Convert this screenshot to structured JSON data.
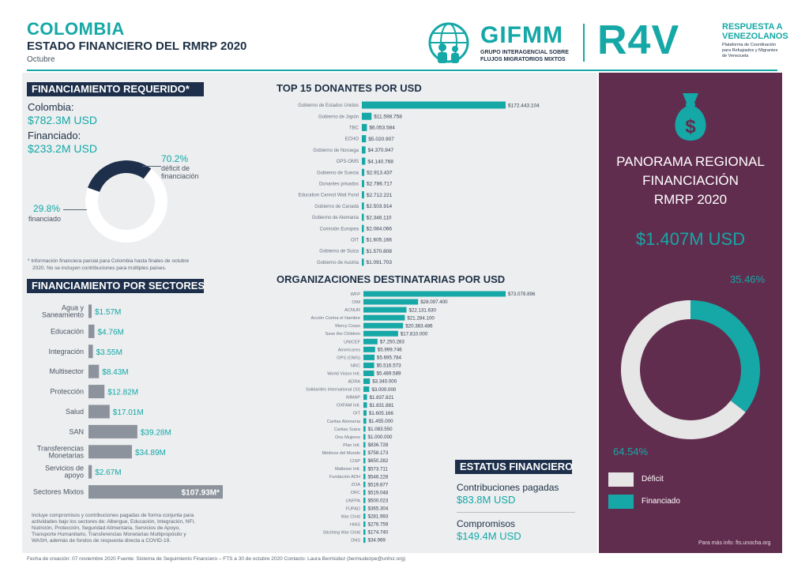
{
  "header": {
    "title": "COLOMBIA",
    "subtitle": "ESTADO FINANCIERO DEL RMRP 2020",
    "month": "Octubre"
  },
  "logos": {
    "gifmm": {
      "name": "GIFMM",
      "line1": "GRUPO INTERAGENCIAL SOBRE",
      "line2": "FLUJOS MIGRATORIOS MIXTOS"
    },
    "r4v": {
      "name": "R4V",
      "line1": "RESPUESTA A",
      "line2": "VENEZOLANOS",
      "line3": "Plataforma de Coordinación",
      "line4": "para Refugiados y Migrantes",
      "line5": "de Venezuela"
    }
  },
  "financiamiento_requerido": {
    "heading": "FINANCIAMIENTO REQUERIDO*",
    "country_label": "Colombia:",
    "country_value": "$782.3M USD",
    "funded_label": "Financiado:",
    "funded_value": "$233.2M USD",
    "deficit_pct": "70.2%",
    "deficit_label_1": "déficit de",
    "deficit_label_2": "financiación",
    "funded_pct": "29.8%",
    "funded_pct_label": "financiado",
    "note_1": "* Información financiera parcial para Colombia hasta finales de octubre",
    "note_2": "2020. No se incluyen contribuciones para múltiples países."
  },
  "sectores": {
    "heading": "FINANCIAMIENTO POR SECTORES",
    "note_1": "Incluye compromisos y contribuciones pagadas de forma conjunta para",
    "note_2": "actividades bajo los sectores de: Albergue, Educación, Integración, NFI,",
    "note_3": "Nutrición, Protección, Seguridad Alimentaria, Servicios de Apoyo,",
    "note_4": "Transporte Humanitario, Transferencias Monetarias Multipropósito y",
    "note_5": "WASH, además de fondos de respuesta directa a COVID-19."
  },
  "top_donantes": {
    "heading": "TOP 15 DONANTES POR USD"
  },
  "organizaciones": {
    "heading": "ORGANIZACIONES DESTINATARIAS POR USD"
  },
  "estatus": {
    "heading": "ESTATUS FINANCIERO",
    "contrib_label": "Contribuciones pagadas",
    "contrib_value": "$83.8M USD",
    "comp_label": "Compromisos",
    "comp_value": "$149.4M USD"
  },
  "panorama": {
    "title_1": "PANORAMA REGIONAL",
    "title_2": "FINANCIACIÓN",
    "title_3": "RMRP 2020",
    "total": "$1.407M USD",
    "pct_funded": "35.46%",
    "pct_deficit": "64.54%",
    "legend_deficit": "Déficit",
    "legend_funded": "Financiado",
    "more_info": "Para más info: fts.unocha.org",
    "colors": {
      "deficit": "#e6e6e6",
      "funded": "#15a8a6"
    }
  },
  "footer": {
    "text": "Fecha de creación: 07 noviembre 2020    Fuente: Sistema de Seguimiento Financiero – FTS a 30 de octubre 2020    Contacto: Laura Bermúdez (bermudezpe@unhcr.org)"
  },
  "chart_data": [
    {
      "type": "pie",
      "title": "",
      "slices": [
        {
          "name": "déficit de financiación",
          "value": 70.2
        },
        {
          "name": "financiado",
          "value": 29.8
        }
      ],
      "colors": [
        "#ffffff",
        "#1d2f4a"
      ]
    },
    {
      "type": "bar",
      "orientation": "horizontal",
      "title": "FINANCIAMIENTO POR SECTORES",
      "categories": [
        "Agua y Saneamiento",
        "Educación",
        "Integración",
        "Multisector",
        "Protección",
        "Salud",
        "SAN",
        "Transferencias Monetarias",
        "Servicios de apoyo",
        "Sectores Mixtos"
      ],
      "category_lines": [
        [
          "Agua y",
          "Saneamiento"
        ],
        [
          "Educación"
        ],
        [
          "Integración"
        ],
        [
          "Multisector"
        ],
        [
          "Protección"
        ],
        [
          "Salud"
        ],
        [
          "SAN"
        ],
        [
          "Transferencias",
          "Monetarias"
        ],
        [
          "Servicios de",
          "apoyo"
        ],
        [
          "Sectores Mixtos"
        ]
      ],
      "values": [
        1.57,
        4.76,
        3.55,
        8.43,
        12.82,
        17.01,
        39.28,
        34.89,
        2.67,
        107.93
      ],
      "labels": [
        "$1.57M",
        "$4.76M",
        "$3.55M",
        "$8.43M",
        "$12.82M",
        "$17.01M",
        "$39.28M",
        "$34.89M",
        "$2.67M",
        "$107.93M*"
      ],
      "color": "#8c939c"
    },
    {
      "type": "bar",
      "orientation": "horizontal",
      "title": "TOP 15 DONANTES POR USD",
      "categories": [
        "Gobierno de Estados Unidos",
        "Gobierno de Japón",
        "TBC",
        "ECHO",
        "Gobierno de Noruega",
        "OPS-OMS",
        "Gobierno de Suecia",
        "Donantes privados",
        "Education Cannot Wait Fund",
        "Gobierno de Canadá",
        "Gobierno de Alemania",
        "Comisión Europea",
        "OIT",
        "Gobierno de Suiza",
        "Gobierno de Austria"
      ],
      "values": [
        172443104,
        11598758,
        6053584,
        5020907,
        4370947,
        4140768,
        2913437,
        2786717,
        2712221,
        2503914,
        2346110,
        2084066,
        1605166,
        1570808,
        1091703
      ],
      "labels": [
        "$172.443.104",
        "$11.598.758",
        "$6.053.584",
        "$5.020.907",
        "$4.370.947",
        "$4.140.768",
        "$2.913.437",
        "$2.786.717",
        "$2.712.221",
        "$2.503.914",
        "$2.346.110",
        "$2.084.066",
        "$1.605.166",
        "$1.570.808",
        "$1.091.703"
      ],
      "color": "#15a8a6"
    },
    {
      "type": "bar",
      "orientation": "horizontal",
      "title": "ORGANIZACIONES DESTINATARIAS POR USD",
      "categories": [
        "WFP",
        "OIM",
        "ACNUR",
        "Acción Contra el Hambre",
        "Mercy Corps",
        "Save the Children",
        "UNICEF",
        "Americares",
        "OPS (OMS)",
        "NRC",
        "World Vision Intl.",
        "ADRA",
        "Solidarités International (SI)",
        "iMMAP",
        "OXFAM Intl.",
        "OIT",
        "Caritas Alemania",
        "Caritas Suiza",
        "Onu Mujeres",
        "Plan Intl.",
        "Médicos del Mundo",
        "CISP",
        "Malteser Intl.",
        "Fundación ADH",
        "ZOA",
        "DRC",
        "UNFPA",
        "FUPAD",
        "War Child",
        "HIAS",
        "Stichting War Child",
        "DNS"
      ],
      "values": [
        73079896,
        28097400,
        22131630,
        21284100,
        20383486,
        17810000,
        7250283,
        5999746,
        5695784,
        5516573,
        5489589,
        3340000,
        3000000,
        1837821,
        1831881,
        1605166,
        1455000,
        1083550,
        1000000,
        836728,
        758173,
        650282,
        573711,
        546228,
        519877,
        519048,
        500023,
        365304,
        281993,
        276759,
        174740,
        34969
      ],
      "labels": [
        "$73.079.896",
        "$28.097.400",
        "$22.131.630",
        "$21.284.100",
        "$20.383.486",
        "$17.810.000",
        "$7.250.283",
        "$5.999.746",
        "$5.695.784",
        "$5.516.573",
        "$5.489.589",
        "$3.340.000",
        "$3.000.000",
        "$1.837.821",
        "$1.831.881",
        "$1.605.166",
        "$1.455.000",
        "$1.083.550",
        "$1.000.000",
        "$836.728",
        "$758.173",
        "$650.282",
        "$573.711",
        "$546.228",
        "$519.877",
        "$519.048",
        "$500.023",
        "$365.304",
        "$281.993",
        "$276.759",
        "$174.740",
        "$34.969"
      ],
      "color": "#15a8a6"
    },
    {
      "type": "pie",
      "title": "",
      "slices": [
        {
          "name": "Financiado",
          "value": 35.46
        },
        {
          "name": "Déficit",
          "value": 64.54
        }
      ],
      "colors": [
        "#15a8a6",
        "#e6e6e6"
      ]
    }
  ]
}
